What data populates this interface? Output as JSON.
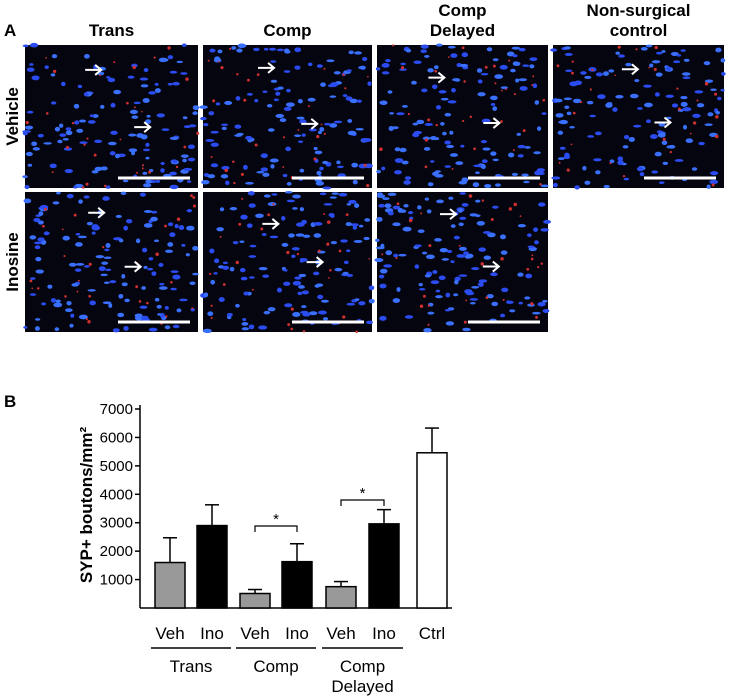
{
  "panel_a": {
    "label": "A",
    "columns": [
      [
        "Trans"
      ],
      [
        "Comp"
      ],
      [
        "Comp",
        "Delayed"
      ],
      [
        "Non-surgical",
        "control"
      ]
    ],
    "rows": [
      "Vehicle",
      "Inosine"
    ]
  },
  "chart_data": {
    "type": "bar",
    "panel_label": "B",
    "y_label": "SYP+ boutons/mm²",
    "categories": [
      "Veh",
      "Ino",
      "Veh",
      "Ino",
      "Veh",
      "Ino",
      "Ctrl"
    ],
    "values": [
      1600,
      2900,
      510,
      1630,
      750,
      2960,
      5460
    ],
    "errors": [
      870,
      730,
      140,
      630,
      180,
      500,
      870
    ],
    "colors": [
      "#999999",
      "#000000",
      "#999999",
      "#000000",
      "#999999",
      "#000000",
      "#ffffff"
    ],
    "groups": [
      [
        "Trans"
      ],
      [
        "Comp"
      ],
      [
        "Comp",
        "Delayed"
      ]
    ],
    "annotations": [
      "*",
      "*"
    ],
    "ylim": [
      0,
      7000
    ],
    "yticks": [
      1000,
      2000,
      3000,
      4000,
      5000,
      6000,
      7000
    ]
  }
}
